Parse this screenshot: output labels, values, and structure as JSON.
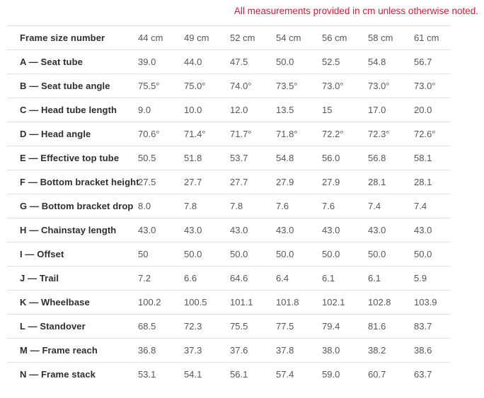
{
  "note": "All measurements provided in cm unless otherwise noted.",
  "colors": {
    "note_red": "#cd1f3a",
    "label_text": "#2e2e2e",
    "value_text": "#575757",
    "row_border": "#e2e2e2"
  },
  "table": {
    "header": {
      "label": "Frame size number",
      "columns": [
        "44 cm",
        "49 cm",
        "52 cm",
        "54 cm",
        "56 cm",
        "58 cm",
        "61 cm"
      ]
    },
    "rows": [
      {
        "label": "A — Seat tube",
        "values": [
          "39.0",
          "44.0",
          "47.5",
          "50.0",
          "52.5",
          "54.8",
          "56.7"
        ]
      },
      {
        "label": "B — Seat tube angle",
        "values": [
          "75.5°",
          "75.0°",
          "74.0°",
          "73.5°",
          "73.0°",
          "73.0°",
          "73.0°"
        ]
      },
      {
        "label": "C — Head tube length",
        "values": [
          "9.0",
          "10.0",
          "12.0",
          "13.5",
          "15",
          "17.0",
          "20.0"
        ]
      },
      {
        "label": "D — Head angle",
        "values": [
          "70.6°",
          "71.4°",
          "71.7°",
          "71.8°",
          "72.2°",
          "72.3°",
          "72.6°"
        ]
      },
      {
        "label": "E — Effective top tube",
        "values": [
          "50.5",
          "51.8",
          "53.7",
          "54.8",
          "56.0",
          "56.8",
          "58.1"
        ]
      },
      {
        "label": "F — Bottom bracket height",
        "values": [
          "27.5",
          "27.7",
          "27.7",
          "27.9",
          "27.9",
          "28.1",
          "28.1"
        ]
      },
      {
        "label": "G — Bottom bracket drop",
        "values": [
          "8.0",
          "7.8",
          "7.8",
          "7.6",
          "7.6",
          "7.4",
          "7.4"
        ]
      },
      {
        "label": "H — Chainstay length",
        "values": [
          "43.0",
          "43.0",
          "43.0",
          "43.0",
          "43.0",
          "43.0",
          "43.0"
        ]
      },
      {
        "label": "I — Offset",
        "values": [
          "50",
          "50.0",
          "50.0",
          "50.0",
          "50.0",
          "50.0",
          "50.0"
        ]
      },
      {
        "label": "J — Trail",
        "values": [
          "7.2",
          "6.6",
          "64.6",
          "6.4",
          "6.1",
          "6.1",
          "5.9"
        ]
      },
      {
        "label": "K — Wheelbase",
        "values": [
          "100.2",
          "100.5",
          "101.1",
          "101.8",
          "102.1",
          "102.8",
          "103.9"
        ]
      },
      {
        "label": "L — Standover",
        "values": [
          "68.5",
          "72.3",
          "75.5",
          "77.5",
          "79.4",
          "81.6",
          "83.7"
        ]
      },
      {
        "label": "M — Frame reach",
        "values": [
          "36.8",
          "37.3",
          "37.6",
          "37.8",
          "38.0",
          "38.2",
          "38.6"
        ]
      },
      {
        "label": "N — Frame stack",
        "values": [
          "53.1",
          "54.1",
          "56.1",
          "57.4",
          "59.0",
          "60.7",
          "63.7"
        ]
      }
    ]
  }
}
